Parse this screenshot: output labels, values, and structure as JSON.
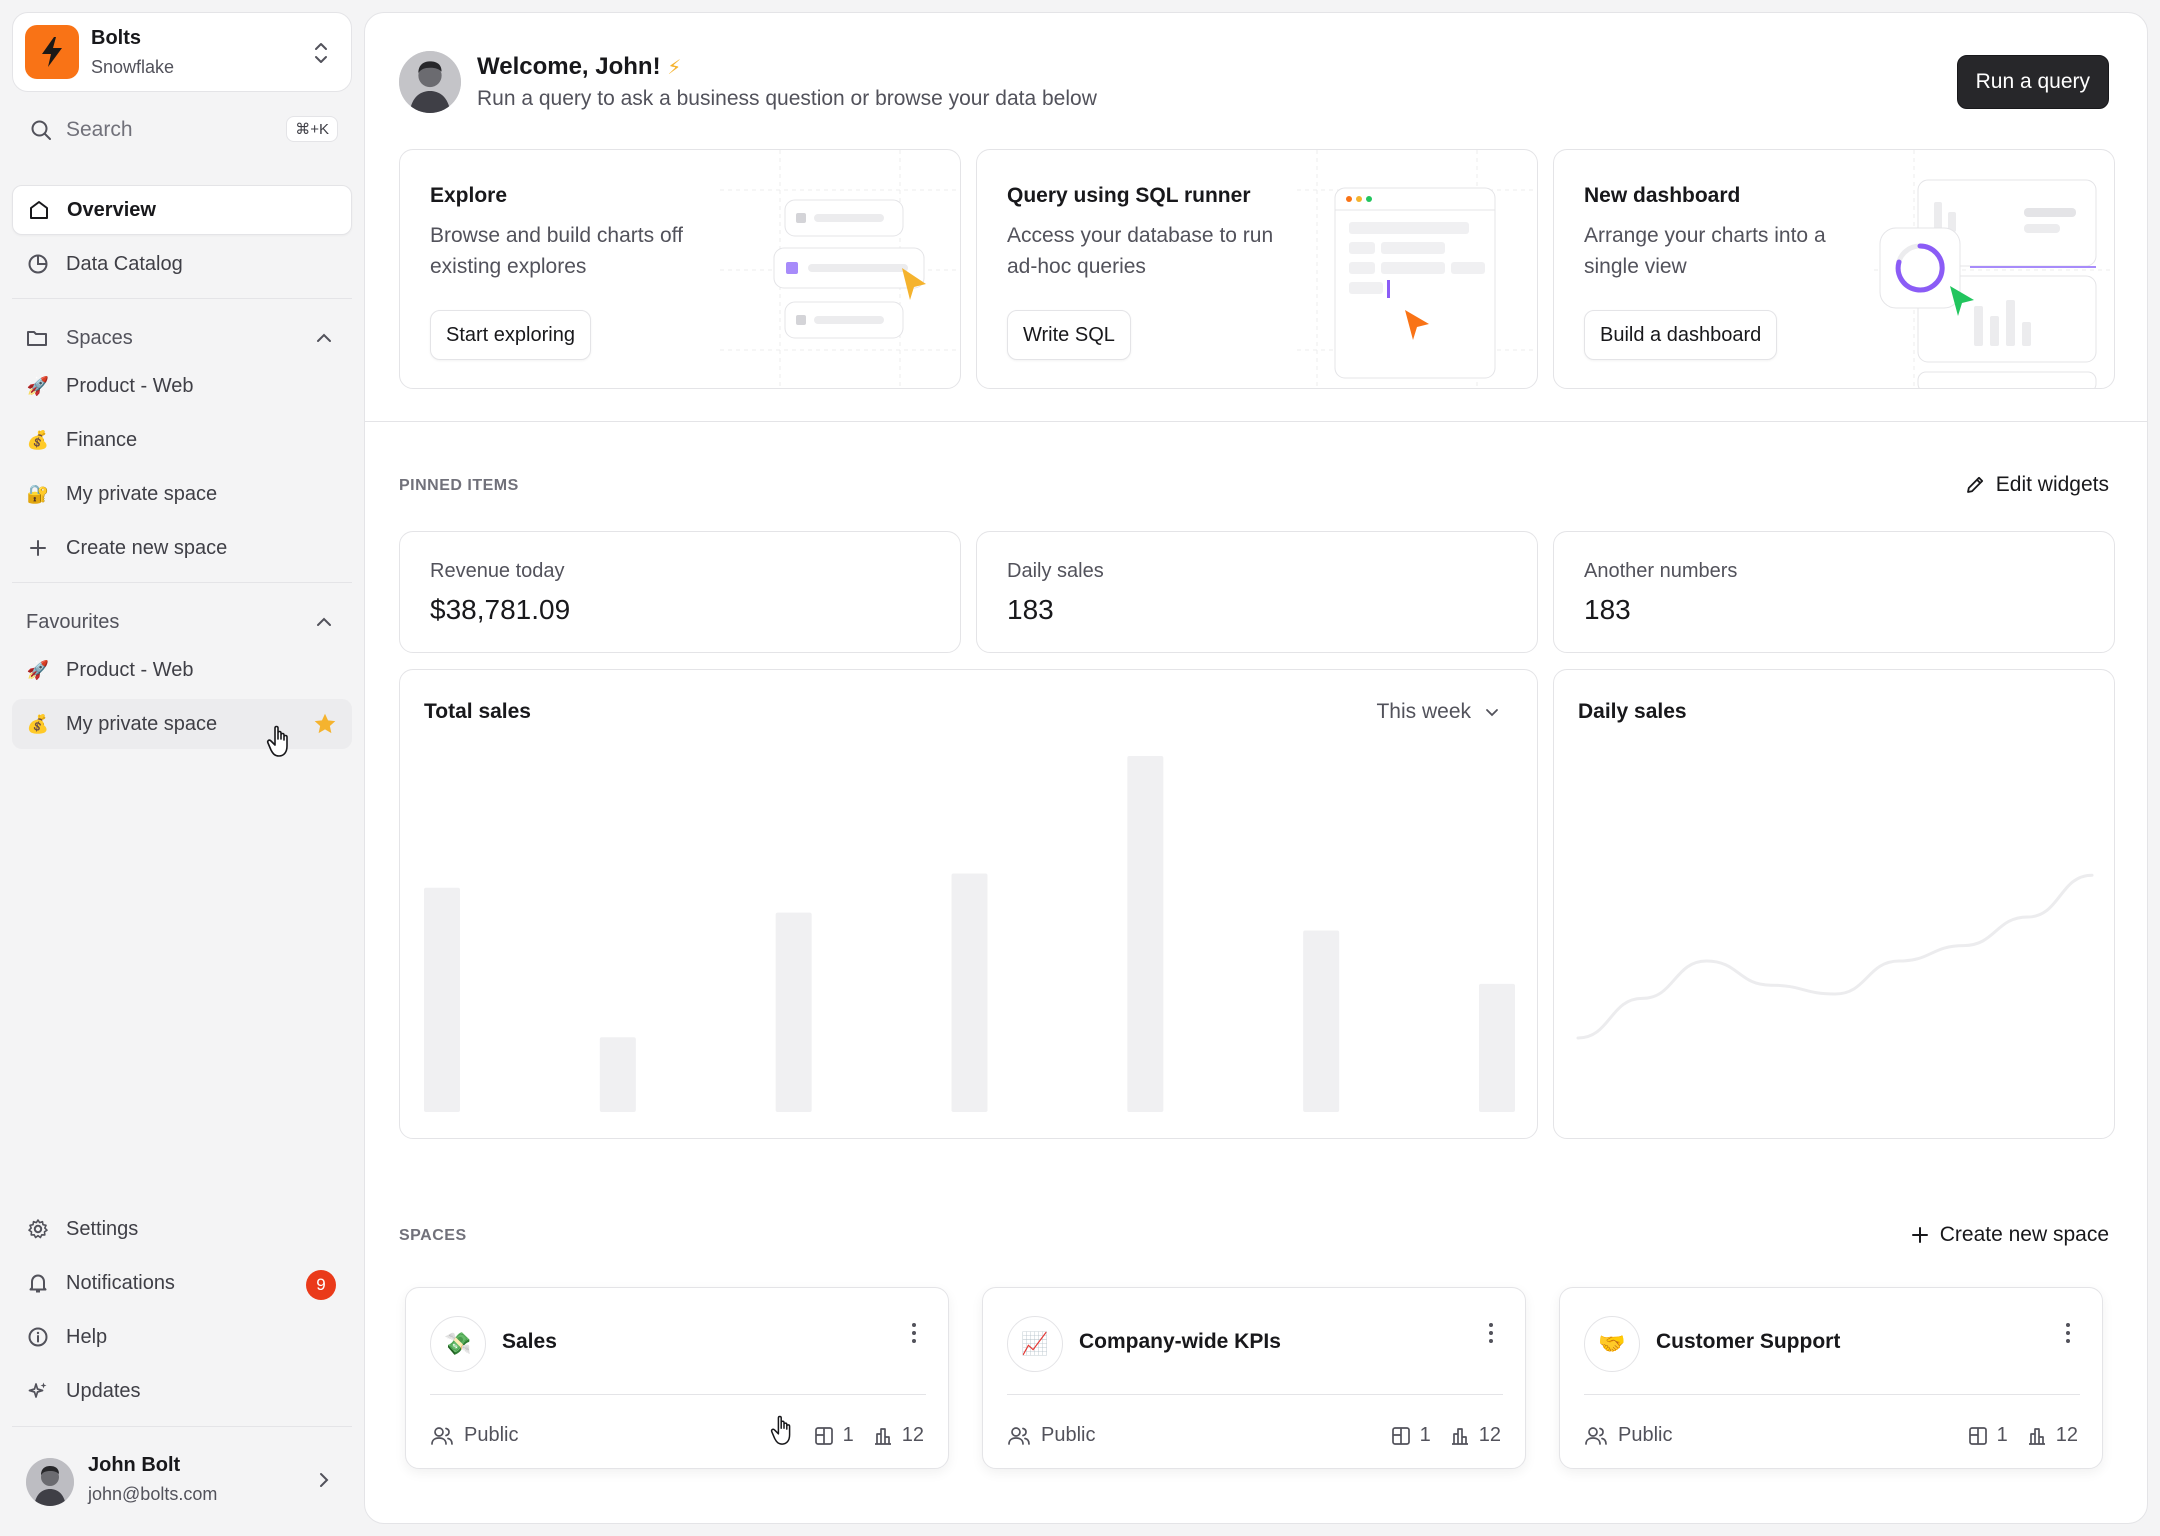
{
  "org": {
    "name": "Bolts",
    "warehouse": "Snowflake"
  },
  "search": {
    "label": "Search",
    "shortcut": "⌘+K"
  },
  "nav": {
    "overview": "Overview",
    "catalog": "Data Catalog",
    "spaces_header": "Spaces",
    "spaces": [
      {
        "emoji": "🚀",
        "label": "Product - Web"
      },
      {
        "emoji": "💰",
        "label": "Finance"
      },
      {
        "emoji": "🔐",
        "label": "My private space"
      }
    ],
    "create_space": "Create new space",
    "favourites_header": "Favourites",
    "favourites": [
      {
        "emoji": "🚀",
        "label": "Product - Web"
      },
      {
        "emoji": "💰",
        "label": "My private space"
      }
    ],
    "settings": "Settings",
    "notifications": "Notifications",
    "notifications_count": "9",
    "help": "Help",
    "updates": "Updates"
  },
  "user": {
    "name": "John Bolt",
    "email": "john@bolts.com"
  },
  "welcome": {
    "title": "Welcome, John!",
    "emoji": "⚡",
    "subtitle": "Run a query to ask a business question or browse your data below",
    "run_button": "Run a query"
  },
  "actions": [
    {
      "title": "Explore",
      "description": "Browse and build charts off existing explores",
      "button": "Start exploring"
    },
    {
      "title": "Query using SQL runner",
      "description": "Access your database to run ad-hoc queries",
      "button": "Write SQL"
    },
    {
      "title": "New dashboard",
      "description": "Arrange your charts into a single view",
      "button": "Build a dashboard"
    }
  ],
  "pinned": {
    "label": "PINNED ITEMS",
    "edit": "Edit widgets",
    "stats": [
      {
        "label": "Revenue today",
        "value": "$38,781.09"
      },
      {
        "label": "Daily sales",
        "value": "183"
      },
      {
        "label": "Another numbers",
        "value": "183"
      }
    ]
  },
  "total_sales": {
    "title": "Total sales",
    "range": "This week"
  },
  "daily_sales": {
    "title": "Daily sales"
  },
  "chart_data": [
    {
      "type": "bar",
      "title": "Total sales",
      "categories": [
        "",
        "",
        "",
        "",
        "",
        "",
        ""
      ],
      "values": [
        63,
        21,
        56,
        67,
        100,
        51,
        36
      ],
      "ylim": [
        0,
        100
      ]
    },
    {
      "type": "line",
      "title": "Daily sales",
      "x": [
        0,
        1,
        2,
        3,
        4,
        5,
        6,
        7,
        8
      ],
      "values": [
        10,
        28,
        45,
        34,
        30,
        45,
        52,
        65,
        84
      ],
      "ylim": [
        0,
        100
      ]
    }
  ],
  "spaces_section": {
    "label": "SPACES",
    "create": "Create new space",
    "items": [
      {
        "emoji": "💸",
        "name": "Sales",
        "visibility": "Public",
        "dashboards": "1",
        "charts": "12"
      },
      {
        "emoji": "📈",
        "name": "Company-wide KPIs",
        "visibility": "Public",
        "dashboards": "1",
        "charts": "12"
      },
      {
        "emoji": "🤝",
        "name": "Customer Support",
        "visibility": "Public",
        "dashboards": "1",
        "charts": "12"
      }
    ]
  },
  "colors": {
    "brand": "#f97316",
    "badge": "#ea3a1a",
    "star": "#f5b32e",
    "button_dark": "#27272a"
  }
}
